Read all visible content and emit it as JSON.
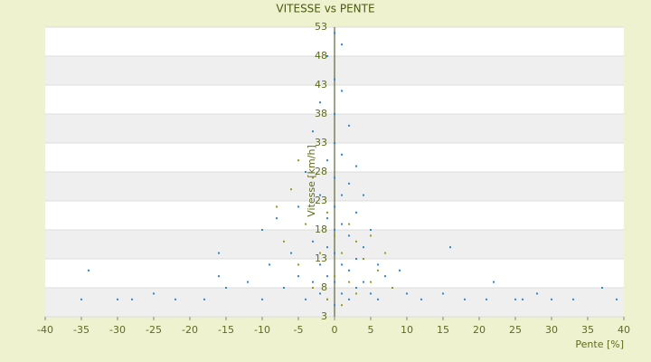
{
  "chart_data": {
    "type": "scatter",
    "title": "VITESSE vs PENTE",
    "x_label": "Pente [%]",
    "y_label": "Vitesse [km/h]",
    "xlim": [
      -40,
      40
    ],
    "xticks": [
      -40,
      -35,
      -30,
      -25,
      -20,
      -15,
      -10,
      -5,
      0,
      5,
      10,
      15,
      20,
      25,
      30,
      35,
      40
    ],
    "ylim": [
      3,
      53
    ],
    "yticks": [
      3,
      8,
      13,
      18,
      23,
      28,
      33,
      38,
      43,
      48,
      53
    ],
    "grid": true,
    "series": [
      {
        "color": "#2e86d6",
        "x": [
          -35,
          -34,
          -30,
          -28,
          -25,
          -22,
          -18,
          -16,
          -16,
          -15,
          -12,
          -10,
          -10,
          -9,
          -8,
          -7,
          -6,
          -5,
          -5,
          -4,
          -4,
          -3,
          -3,
          -3,
          -2,
          -2,
          -2,
          -2,
          -1,
          -1,
          -1,
          -1,
          -1,
          -1,
          0,
          0,
          0,
          0,
          0,
          0,
          0,
          0,
          0,
          0,
          1,
          1,
          1,
          1,
          1,
          1,
          1,
          2,
          2,
          2,
          2,
          2,
          3,
          3,
          3,
          3,
          4,
          4,
          4,
          5,
          5,
          6,
          6,
          7,
          8,
          9,
          10,
          12,
          15,
          16,
          18,
          21,
          22,
          25,
          26,
          28,
          30,
          33,
          37,
          39
        ],
        "values": [
          6,
          11,
          6,
          6,
          7,
          6,
          6,
          14,
          10,
          8,
          9,
          6,
          18,
          12,
          20,
          8,
          14,
          22,
          10,
          6,
          28,
          16,
          35,
          9,
          40,
          24,
          12,
          7,
          48,
          30,
          20,
          15,
          10,
          6,
          52,
          44,
          38,
          33,
          27,
          22,
          18,
          14,
          9,
          5,
          50,
          42,
          31,
          24,
          19,
          12,
          7,
          36,
          26,
          17,
          11,
          6,
          29,
          21,
          13,
          8,
          24,
          15,
          9,
          18,
          7,
          12,
          6,
          10,
          8,
          11,
          7,
          6,
          7,
          15,
          6,
          6,
          9,
          6,
          6,
          7,
          6,
          6,
          8,
          6
        ]
      },
      {
        "color": "#9a9a10",
        "x": [
          -8,
          -7,
          -6,
          -5,
          -5,
          -4,
          -3,
          -3,
          -2,
          -1,
          -1,
          0,
          0,
          1,
          1,
          2,
          2,
          3,
          3,
          4,
          5,
          5,
          6,
          7,
          8
        ],
        "values": [
          22,
          16,
          25,
          30,
          12,
          19,
          27,
          8,
          14,
          21,
          6,
          17,
          10,
          14,
          5,
          19,
          9,
          16,
          7,
          13,
          17,
          9,
          11,
          14,
          8
        ]
      }
    ]
  }
}
